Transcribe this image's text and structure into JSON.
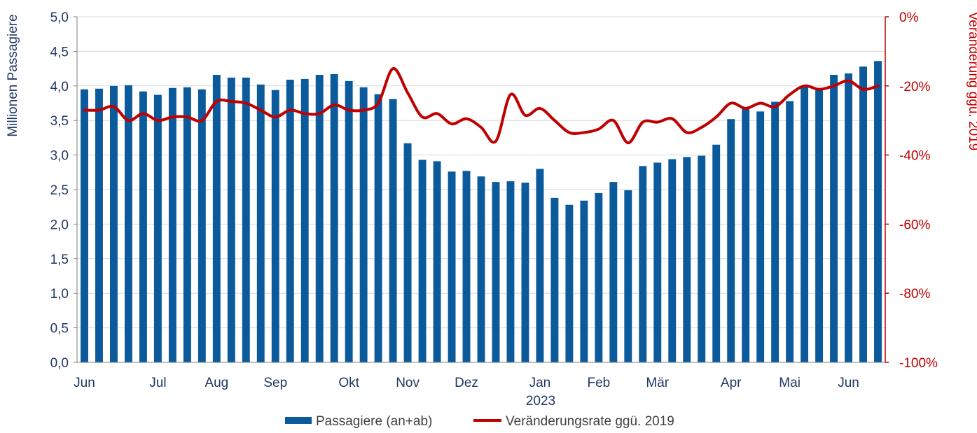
{
  "chart_data": {
    "type": "bar+line",
    "series": [
      {
        "name": "Passagiere (an+ab)",
        "kind": "bar",
        "axis": "left",
        "color": "#0a5a9c",
        "values": [
          3.95,
          3.96,
          4.0,
          4.01,
          3.92,
          3.87,
          3.97,
          3.98,
          3.95,
          4.16,
          4.12,
          4.12,
          4.02,
          3.94,
          4.09,
          4.1,
          4.16,
          4.17,
          4.07,
          3.98,
          3.88,
          3.81,
          3.17,
          2.93,
          2.91,
          2.76,
          2.77,
          2.69,
          2.61,
          2.62,
          2.6,
          2.8,
          2.38,
          2.28,
          2.34,
          2.45,
          2.61,
          2.49,
          2.84,
          2.89,
          2.94,
          2.97,
          2.99,
          3.15,
          3.52,
          3.67,
          3.63,
          3.77,
          3.78,
          4.0,
          3.96,
          4.16,
          4.18,
          4.28,
          4.36
        ]
      },
      {
        "name": "Veränderungsrate ggü. 2019",
        "kind": "line",
        "axis": "right",
        "color": "#c00000",
        "values": [
          -27,
          -27,
          -26,
          -30,
          -28,
          -30,
          -29,
          -29,
          -30,
          -24.5,
          -24.5,
          -25,
          -27,
          -29,
          -27,
          -28,
          -28,
          -25.5,
          -27,
          -27,
          -25,
          -15,
          -22,
          -29,
          -28,
          -31,
          -29.5,
          -32,
          -36,
          -22.5,
          -28.5,
          -26.5,
          -30,
          -33.5,
          -33.5,
          -32.5,
          -30,
          -36.5,
          -30.5,
          -30.5,
          -29.5,
          -33.5,
          -32,
          -29,
          -25,
          -26.5,
          -25,
          -26,
          -22.5,
          -20,
          -21,
          -20,
          -18.5,
          -21,
          -20
        ]
      }
    ],
    "y_left": {
      "label": "Millionen Passagiere",
      "min": 0,
      "max": 5,
      "ticks": [
        "0,0",
        "0,5",
        "1,0",
        "1,5",
        "2,0",
        "2,5",
        "3,0",
        "3,5",
        "4,0",
        "4,5",
        "5,0"
      ]
    },
    "y_right": {
      "label": "Veränderung ggü. 2019",
      "min": -100,
      "max": 0,
      "ticks": [
        "-100%",
        "-80%",
        "-60%",
        "-40%",
        "-20%",
        "0%"
      ]
    },
    "x_ticks": [
      {
        "label": "Jun",
        "index": 0
      },
      {
        "label": "Jul",
        "index": 5
      },
      {
        "label": "Aug",
        "index": 9
      },
      {
        "label": "Sep",
        "index": 13
      },
      {
        "label": "Okt",
        "index": 18
      },
      {
        "label": "Nov",
        "index": 22
      },
      {
        "label": "Dez",
        "index": 26
      },
      {
        "label": "Jan",
        "index": 31
      },
      {
        "label": "Feb",
        "index": 35
      },
      {
        "label": "Mär",
        "index": 39
      },
      {
        "label": "Apr",
        "index": 44
      },
      {
        "label": "Mai",
        "index": 48
      },
      {
        "label": "Jun",
        "index": 52
      }
    ],
    "x_year_label": "2023",
    "grid": true,
    "legend_position": "bottom-center",
    "colors": {
      "bar": "#0a5a9c",
      "line": "#c00000",
      "left_axis_text": "#1f3864",
      "right_axis_text": "#c00000",
      "grid": "#d9d9d9"
    }
  }
}
